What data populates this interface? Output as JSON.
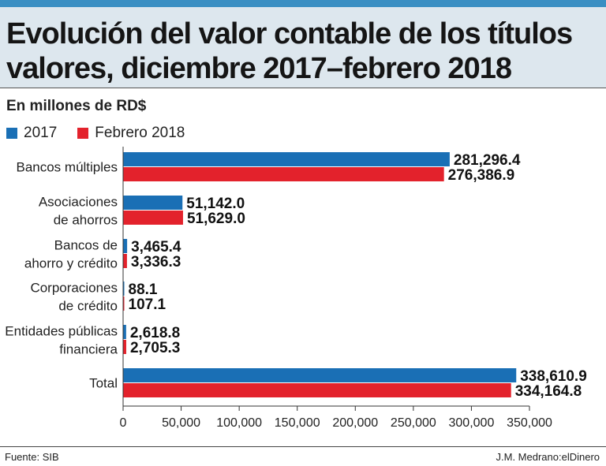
{
  "header": {
    "title_line1": "Evolución del valor contable de los títulos",
    "title_line2": "valores, diciembre 2017–febrero 2018"
  },
  "subtitle": "En millones de RD$",
  "footer": {
    "source": "Fuente: SIB",
    "credit": "J.M. Medrano:elDinero"
  },
  "colors": {
    "series_2017": "#1a6fb5",
    "series_2018": "#e3222c",
    "header_band": "#dde7ee",
    "top_bar": "#3a8fc3"
  },
  "chart_data": {
    "type": "bar",
    "orientation": "horizontal",
    "title": "Evolución del valor contable de los títulos valores, diciembre 2017–febrero 2018",
    "ylabel": "En millones de RD$",
    "xlim": [
      0,
      350000
    ],
    "x_ticks": [
      "0",
      "50,000",
      "100,000",
      "150,000",
      "200,000",
      "250,000",
      "300,000",
      "350,000"
    ],
    "x_tick_values": [
      0,
      50000,
      100000,
      150000,
      200000,
      250000,
      300000,
      350000
    ],
    "legend_position": "top-left",
    "grid": false,
    "categories": [
      [
        "Bancos múltiples"
      ],
      [
        "Asociaciones",
        "de ahorros"
      ],
      [
        "Bancos de",
        "ahorro y crédito"
      ],
      [
        "Corporaciones",
        "de crédito"
      ],
      [
        "Entidades públicas",
        "financiera"
      ],
      [
        "Total"
      ]
    ],
    "series": [
      {
        "name": "2017",
        "values": [
          281296.4,
          51142.0,
          3465.4,
          88.1,
          2618.8,
          338610.9
        ],
        "labels": [
          "281,296.4",
          "51,142.0",
          "3,465.4",
          "88.1",
          "2,618.8",
          "338,610.9"
        ]
      },
      {
        "name": "Febrero 2018",
        "values": [
          276386.9,
          51629.0,
          3336.3,
          107.1,
          2705.3,
          334164.8
        ],
        "labels": [
          "276,386.9",
          "51,629.0",
          "3,336.3",
          "107.1",
          "2,705.3",
          "334,164.8"
        ]
      }
    ]
  }
}
